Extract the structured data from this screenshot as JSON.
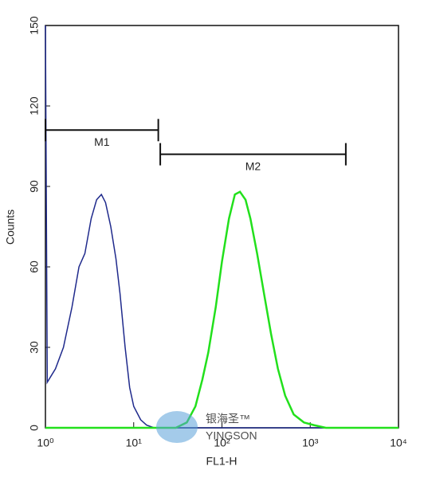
{
  "chart_data": {
    "type": "histogram-overlay",
    "xlabel": "FL1-H",
    "ylabel": "Counts",
    "xscale": "log",
    "xlim": [
      1,
      10000
    ],
    "xticks": [
      {
        "value": 1,
        "label": "10⁰"
      },
      {
        "value": 10,
        "label": "10¹"
      },
      {
        "value": 100,
        "label": "10²"
      },
      {
        "value": 1000,
        "label": "10³"
      },
      {
        "value": 10000,
        "label": "10⁴"
      }
    ],
    "ylim": [
      0,
      150
    ],
    "yticks": [
      0,
      30,
      60,
      90,
      120,
      150
    ],
    "series": [
      {
        "color": "#1f2a8c",
        "x": [
          1,
          1.05,
          1.3,
          1.6,
          2.0,
          2.4,
          2.8,
          3.3,
          3.8,
          4.3,
          4.8,
          5.5,
          6.3,
          7.0,
          8.0,
          9.0,
          10,
          12,
          14,
          17,
          10000
        ],
        "values": [
          150,
          17,
          22,
          30,
          45,
          60,
          65,
          78,
          85,
          87,
          84,
          75,
          63,
          50,
          30,
          15,
          8,
          3,
          1,
          0,
          0
        ]
      },
      {
        "color": "#22e01c",
        "x": [
          1,
          30,
          40,
          50,
          60,
          70,
          85,
          100,
          120,
          140,
          160,
          185,
          210,
          250,
          300,
          360,
          430,
          520,
          650,
          850,
          1100,
          1500,
          10000
        ],
        "values": [
          0,
          0,
          2,
          8,
          18,
          28,
          45,
          62,
          78,
          87,
          88,
          85,
          78,
          65,
          50,
          35,
          22,
          12,
          5,
          2,
          1,
          0,
          0
        ]
      }
    ],
    "markers": [
      {
        "name": "M1",
        "range": [
          1,
          19
        ],
        "level": 111
      },
      {
        "name": "M2",
        "range": [
          20,
          2530
        ],
        "level": 102
      }
    ],
    "watermark": [
      "银海圣™",
      "YINGSON"
    ]
  }
}
